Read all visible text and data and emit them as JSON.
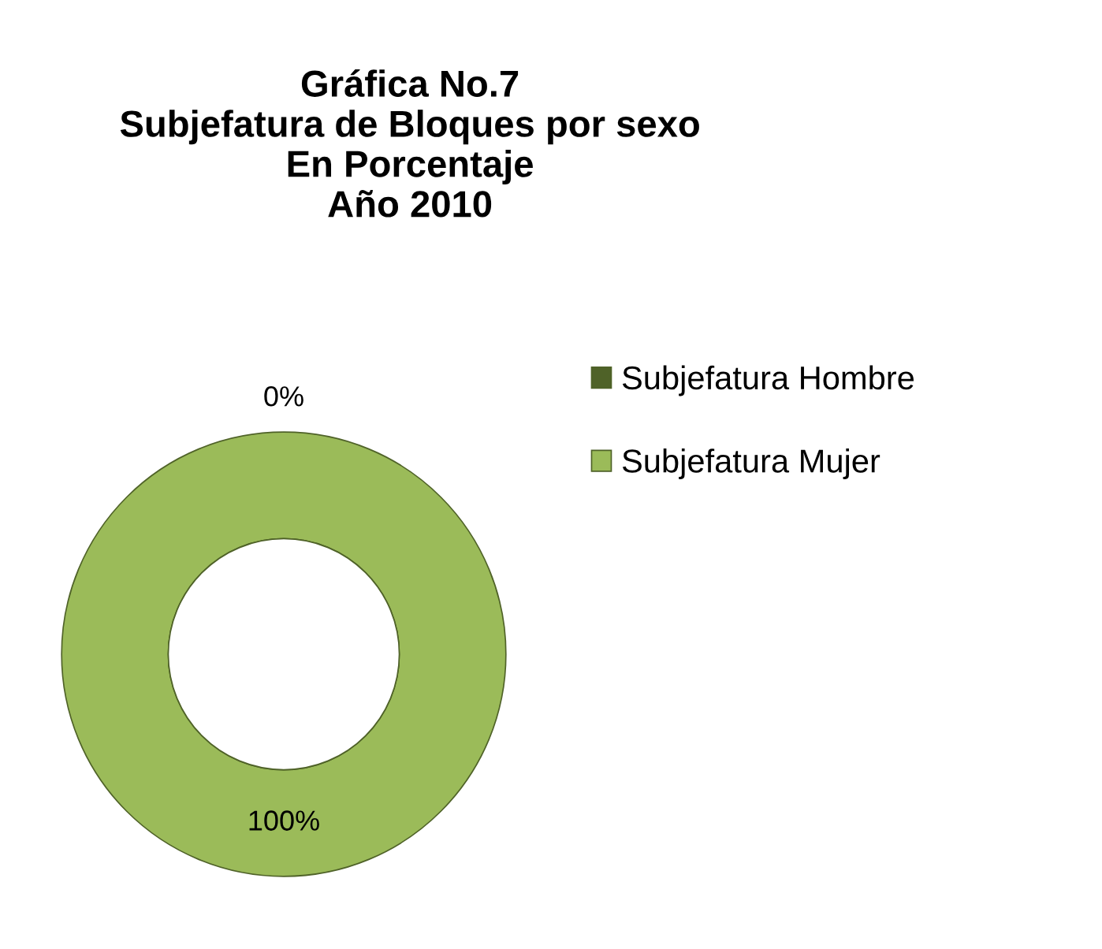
{
  "chart_data": {
    "type": "donut",
    "title": "Gráfica No.7\nSubjefatura de Bloques por sexo\nEn Porcentaje\nAño 2010",
    "categories": [
      "Subjefatura Hombre",
      "Subjefatura Mujer"
    ],
    "values": [
      0,
      100
    ],
    "colors": [
      "#4f6228",
      "#9bbb59"
    ],
    "value_labels": [
      "0%",
      "100%"
    ],
    "legend": "right"
  }
}
